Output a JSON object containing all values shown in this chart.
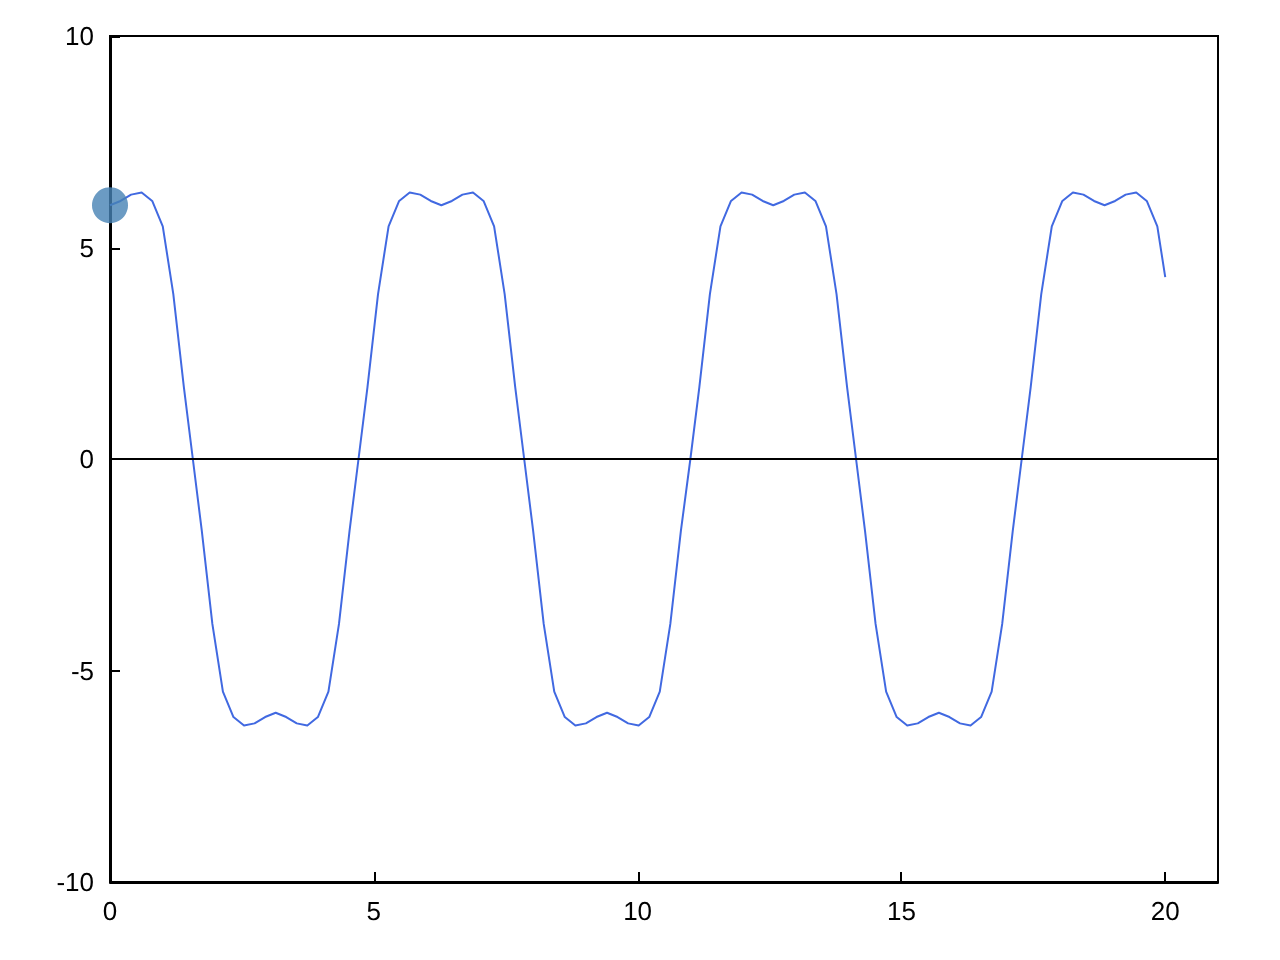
{
  "chart_data": {
    "type": "line",
    "xlim": [
      0,
      21
    ],
    "xticks": [
      0,
      5,
      10,
      15,
      20
    ],
    "ylim": [
      -10,
      10
    ],
    "yticks": [
      -10,
      -5,
      0,
      5,
      10
    ],
    "grid": false,
    "ref_lines": [
      {
        "axis": "y",
        "value": 0,
        "color": "#000000"
      }
    ],
    "series": [
      {
        "type": "line",
        "color": "#4169e1",
        "marker": "none",
        "x": [
          0,
          0.2,
          0.4,
          0.6,
          0.8,
          1.0,
          1.2,
          1.4,
          1.57,
          1.74,
          1.94,
          2.14,
          2.34,
          2.54,
          2.74,
          2.94,
          3.14,
          3.34,
          3.54,
          3.74,
          3.94,
          4.14,
          4.34,
          4.54,
          4.71,
          4.88,
          5.08,
          5.28,
          5.48,
          5.68,
          5.88,
          6.08,
          6.28,
          6.48,
          6.68,
          6.88,
          7.08,
          7.28,
          7.48,
          7.68,
          7.85,
          8.02,
          8.22,
          8.42,
          8.62,
          8.82,
          9.02,
          9.22,
          9.42,
          9.62,
          9.82,
          10.02,
          10.22,
          10.42,
          10.62,
          10.82,
          11.0,
          11.17,
          11.37,
          11.57,
          11.77,
          11.97,
          12.17,
          12.37,
          12.57,
          12.77,
          12.97,
          13.17,
          13.37,
          13.57,
          13.77,
          13.97,
          14.14,
          14.31,
          14.51,
          14.71,
          14.91,
          15.11,
          15.31,
          15.51,
          15.71,
          15.91,
          16.11,
          16.31,
          16.51,
          16.71,
          16.91,
          17.11,
          17.28,
          17.45,
          17.65,
          17.85,
          18.05,
          18.25,
          18.45,
          18.65,
          18.85,
          19.05,
          19.25,
          19.45,
          19.65,
          19.85,
          20.0
        ],
        "values": [
          6.0,
          6.1,
          6.25,
          6.3,
          6.1,
          5.5,
          3.9,
          1.7,
          0,
          -1.7,
          -3.9,
          -5.5,
          -6.1,
          -6.3,
          -6.25,
          -6.1,
          -6.0,
          -6.1,
          -6.25,
          -6.3,
          -6.1,
          -5.5,
          -3.9,
          -1.7,
          0,
          1.7,
          3.9,
          5.5,
          6.1,
          6.3,
          6.25,
          6.1,
          6.0,
          6.1,
          6.25,
          6.3,
          6.1,
          5.5,
          3.9,
          1.7,
          0,
          -1.7,
          -3.9,
          -5.5,
          -6.1,
          -6.3,
          -6.25,
          -6.1,
          -6.0,
          -6.1,
          -6.25,
          -6.3,
          -6.1,
          -5.5,
          -3.9,
          -1.7,
          0,
          1.7,
          3.9,
          5.5,
          6.1,
          6.3,
          6.25,
          6.1,
          6.0,
          6.1,
          6.25,
          6.3,
          6.1,
          5.5,
          3.9,
          1.7,
          0,
          -1.7,
          -3.9,
          -5.5,
          -6.1,
          -6.3,
          -6.25,
          -6.1,
          -6.0,
          -6.1,
          -6.25,
          -6.3,
          -6.1,
          -5.5,
          -3.9,
          -1.7,
          0,
          1.7,
          3.9,
          5.5,
          6.1,
          6.3,
          6.25,
          6.1,
          6.0,
          6.1,
          6.25,
          6.3,
          6.1,
          5.5,
          4.3
        ]
      },
      {
        "type": "scatter",
        "color": "#4682b4",
        "marker": "circle",
        "x": [
          0
        ],
        "values": [
          6.0
        ]
      }
    ]
  }
}
